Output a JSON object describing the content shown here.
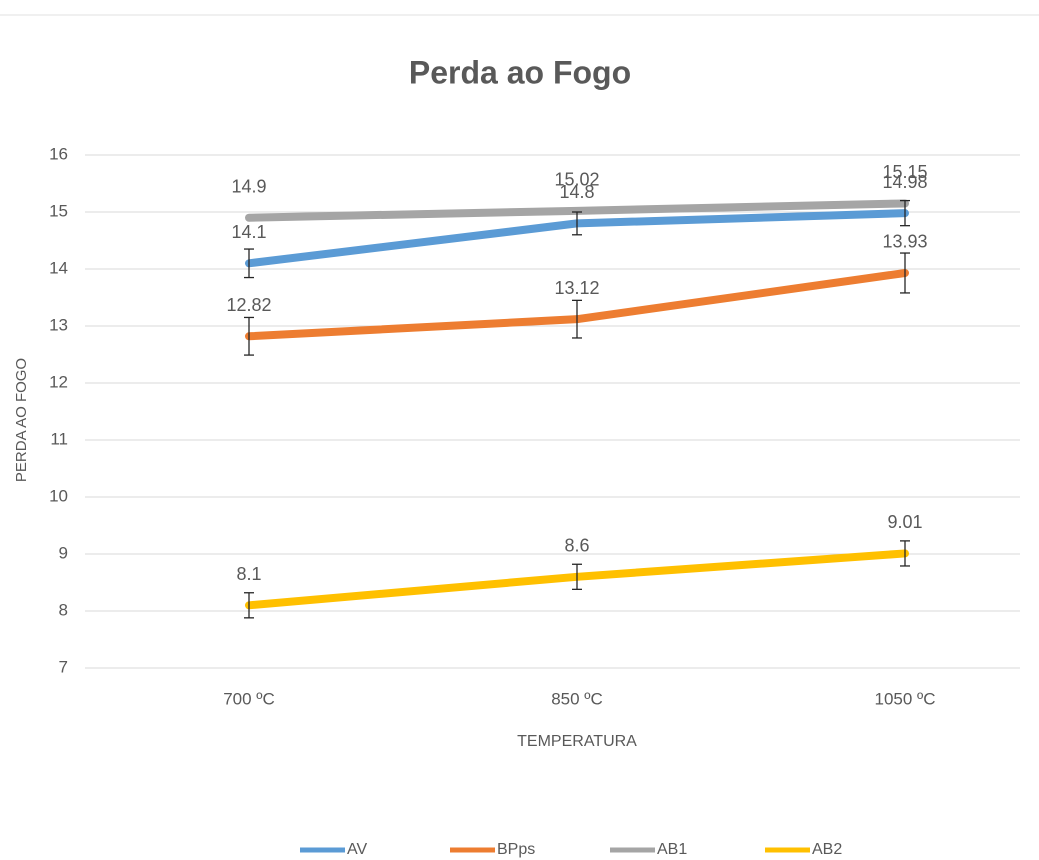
{
  "chart_data": {
    "type": "line",
    "title": "Perda ao Fogo",
    "x_label": "TEMPERATURA",
    "y_label": "PERDA AO FOGO",
    "categories": [
      "700 ºC",
      "850 ºC",
      "1050 ºC"
    ],
    "series": [
      {
        "name": "AV",
        "color": "#5b9bd5",
        "values": [
          14.1,
          14.8,
          14.98
        ],
        "errors": [
          0.25,
          0.2,
          0.22
        ]
      },
      {
        "name": "BPps",
        "color": "#ed7d31",
        "values": [
          12.82,
          13.12,
          13.93
        ],
        "errors": [
          0.33,
          0.33,
          0.35
        ]
      },
      {
        "name": "AB1",
        "color": "#a5a5a5",
        "values": [
          14.9,
          15.02,
          15.15
        ]
      },
      {
        "name": "AB2",
        "color": "#ffc000",
        "values": [
          8.1,
          8.6,
          9.01
        ],
        "errors": [
          0.22,
          0.22,
          0.22
        ]
      }
    ],
    "ylim": [
      7,
      16
    ],
    "yticks": [
      7,
      8,
      9,
      10,
      11,
      12,
      13,
      14,
      15,
      16
    ],
    "grid": true,
    "legend": "bottom"
  }
}
